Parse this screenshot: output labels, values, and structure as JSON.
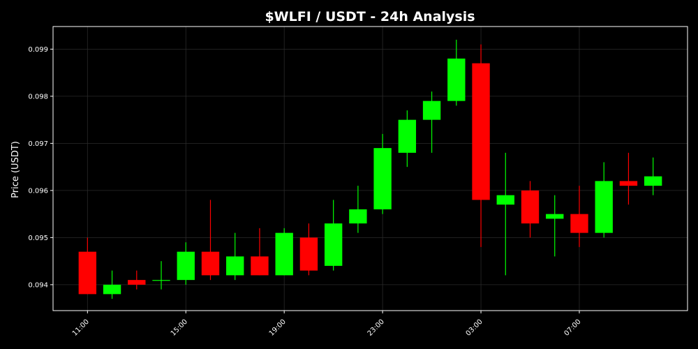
{
  "chart_data": {
    "type": "candlestick",
    "title": "$WLFI / USDT - 24h Analysis",
    "xlabel": "",
    "ylabel": "Price (USDT)",
    "x_tick_labels": [
      "11:00",
      "15:00",
      "19:00",
      "23:00",
      "03:00",
      "07:00"
    ],
    "y_tick_labels": [
      "0.094",
      "0.095",
      "0.096",
      "0.097",
      "0.098",
      "0.099"
    ],
    "y_ticks": [
      0.094,
      0.095,
      0.096,
      0.097,
      0.098,
      0.099
    ],
    "ylim": [
      0.09345,
      0.09948
    ],
    "grid": true,
    "colors": {
      "background": "#000000",
      "up": "#00ff00",
      "down": "#ff0000",
      "grid": "#2a2a2a",
      "frame": "#ffffff",
      "text": "#ffffff"
    },
    "candles": [
      {
        "time": "11:00",
        "open": 0.0947,
        "high": 0.095,
        "low": 0.0938,
        "close": 0.0938
      },
      {
        "time": "12:00",
        "open": 0.0938,
        "high": 0.0943,
        "low": 0.0937,
        "close": 0.094
      },
      {
        "time": "13:00",
        "open": 0.0941,
        "high": 0.0943,
        "low": 0.0939,
        "close": 0.094
      },
      {
        "time": "14:00",
        "open": 0.0941,
        "high": 0.0945,
        "low": 0.0939,
        "close": 0.0941
      },
      {
        "time": "15:00",
        "open": 0.0941,
        "high": 0.0949,
        "low": 0.094,
        "close": 0.0947
      },
      {
        "time": "16:00",
        "open": 0.0947,
        "high": 0.0958,
        "low": 0.0941,
        "close": 0.0942
      },
      {
        "time": "17:00",
        "open": 0.0942,
        "high": 0.0951,
        "low": 0.0941,
        "close": 0.0946
      },
      {
        "time": "18:00",
        "open": 0.0946,
        "high": 0.0952,
        "low": 0.0942,
        "close": 0.0942
      },
      {
        "time": "19:00",
        "open": 0.0942,
        "high": 0.0952,
        "low": 0.0942,
        "close": 0.0951
      },
      {
        "time": "20:00",
        "open": 0.095,
        "high": 0.0953,
        "low": 0.0942,
        "close": 0.0943
      },
      {
        "time": "21:00",
        "open": 0.0944,
        "high": 0.0958,
        "low": 0.0943,
        "close": 0.0953
      },
      {
        "time": "22:00",
        "open": 0.0953,
        "high": 0.0961,
        "low": 0.0951,
        "close": 0.0956
      },
      {
        "time": "23:00",
        "open": 0.0956,
        "high": 0.0972,
        "low": 0.0955,
        "close": 0.0969
      },
      {
        "time": "00:00",
        "open": 0.0968,
        "high": 0.0977,
        "low": 0.0965,
        "close": 0.0975
      },
      {
        "time": "01:00",
        "open": 0.0975,
        "high": 0.0981,
        "low": 0.0968,
        "close": 0.0979
      },
      {
        "time": "02:00",
        "open": 0.0979,
        "high": 0.0992,
        "low": 0.0978,
        "close": 0.0988
      },
      {
        "time": "03:00",
        "open": 0.0987,
        "high": 0.0991,
        "low": 0.0948,
        "close": 0.0958
      },
      {
        "time": "04:00",
        "open": 0.0957,
        "high": 0.0968,
        "low": 0.0942,
        "close": 0.0959
      },
      {
        "time": "05:00",
        "open": 0.096,
        "high": 0.0962,
        "low": 0.095,
        "close": 0.0953
      },
      {
        "time": "06:00",
        "open": 0.0954,
        "high": 0.0959,
        "low": 0.0946,
        "close": 0.0955
      },
      {
        "time": "07:00",
        "open": 0.0955,
        "high": 0.0961,
        "low": 0.0948,
        "close": 0.0951
      },
      {
        "time": "08:00",
        "open": 0.0951,
        "high": 0.0966,
        "low": 0.095,
        "close": 0.0962
      },
      {
        "time": "09:00",
        "open": 0.0962,
        "high": 0.0968,
        "low": 0.0957,
        "close": 0.0961
      },
      {
        "time": "10:00",
        "open": 0.0961,
        "high": 0.0967,
        "low": 0.0959,
        "close": 0.0963
      }
    ]
  }
}
